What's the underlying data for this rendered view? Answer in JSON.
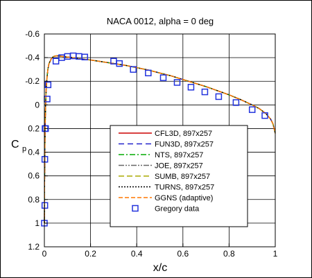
{
  "chart_data": {
    "type": "line",
    "title": "NACA 0012, alpha = 0 deg",
    "xlabel": "x/c",
    "ylabel": "C",
    "ylabel_sub": "p",
    "xlim": [
      0,
      1
    ],
    "ylim": [
      1.2,
      -0.6
    ],
    "y_inverted": true,
    "grid": true,
    "xticks": [
      0,
      0.2,
      0.4,
      0.6,
      0.8,
      1
    ],
    "xtick_labels": [
      "0",
      "0.2",
      "0.4",
      "0.6",
      "0.8",
      "1"
    ],
    "yticks": [
      -0.6,
      -0.4,
      -0.2,
      0,
      0.2,
      0.4,
      0.6,
      0.8,
      1,
      1.2
    ],
    "ytick_labels": [
      "-0.6",
      "-0.4",
      "-0.2",
      "0",
      "0.2",
      "0.4",
      "0.6",
      "0.8",
      "1",
      "1.2"
    ],
    "legend_position": "lower-right",
    "x": [
      0.0,
      0.0005,
      0.001,
      0.002,
      0.003,
      0.005,
      0.0075,
      0.01,
      0.015,
      0.02,
      0.03,
      0.04,
      0.05,
      0.06,
      0.08,
      0.1,
      0.12,
      0.15,
      0.2,
      0.25,
      0.3,
      0.35,
      0.4,
      0.45,
      0.5,
      0.55,
      0.6,
      0.65,
      0.7,
      0.75,
      0.8,
      0.85,
      0.9,
      0.93,
      0.96,
      0.98,
      0.99,
      1.0
    ],
    "series": [
      {
        "name": "CFL3D, 897x257",
        "color": "#cc0000",
        "dash": "",
        "values": [
          1.0,
          0.85,
          0.65,
          0.4,
          0.22,
          0.02,
          -0.12,
          -0.2,
          -0.3,
          -0.35,
          -0.39,
          -0.41,
          -0.415,
          -0.415,
          -0.41,
          -0.405,
          -0.4,
          -0.39,
          -0.38,
          -0.365,
          -0.35,
          -0.335,
          -0.315,
          -0.295,
          -0.27,
          -0.245,
          -0.215,
          -0.185,
          -0.155,
          -0.12,
          -0.085,
          -0.045,
          0.0,
          0.03,
          0.075,
          0.12,
          0.16,
          0.24
        ]
      },
      {
        "name": "FUN3D, 897x257",
        "color": "#2222cc",
        "dash": "8,5",
        "values": [
          1.0,
          0.85,
          0.65,
          0.4,
          0.22,
          0.02,
          -0.12,
          -0.2,
          -0.3,
          -0.35,
          -0.39,
          -0.41,
          -0.415,
          -0.415,
          -0.41,
          -0.405,
          -0.4,
          -0.39,
          -0.38,
          -0.365,
          -0.35,
          -0.335,
          -0.315,
          -0.295,
          -0.27,
          -0.245,
          -0.215,
          -0.185,
          -0.155,
          -0.12,
          -0.085,
          -0.045,
          0.0,
          0.03,
          0.075,
          0.12,
          0.16,
          0.24
        ]
      },
      {
        "name": "NTS, 897x257",
        "color": "#00aa00",
        "dash": "8,3,2,3",
        "values": [
          1.0,
          0.85,
          0.65,
          0.4,
          0.22,
          0.02,
          -0.12,
          -0.2,
          -0.3,
          -0.35,
          -0.39,
          -0.41,
          -0.415,
          -0.415,
          -0.41,
          -0.405,
          -0.4,
          -0.39,
          -0.38,
          -0.365,
          -0.35,
          -0.335,
          -0.315,
          -0.295,
          -0.27,
          -0.245,
          -0.215,
          -0.185,
          -0.155,
          -0.12,
          -0.085,
          -0.045,
          0.0,
          0.03,
          0.075,
          0.12,
          0.16,
          0.24
        ]
      },
      {
        "name": "JOE, 897x257",
        "color": "#666666",
        "dash": "8,2,2,2,2,2",
        "values": [
          1.0,
          0.85,
          0.65,
          0.4,
          0.22,
          0.02,
          -0.12,
          -0.2,
          -0.3,
          -0.35,
          -0.39,
          -0.41,
          -0.415,
          -0.415,
          -0.41,
          -0.405,
          -0.4,
          -0.39,
          -0.38,
          -0.365,
          -0.35,
          -0.335,
          -0.315,
          -0.295,
          -0.27,
          -0.245,
          -0.215,
          -0.185,
          -0.155,
          -0.12,
          -0.085,
          -0.045,
          0.0,
          0.03,
          0.075,
          0.12,
          0.16,
          0.24
        ]
      },
      {
        "name": "SUMB, 897x257",
        "color": "#aaaa00",
        "dash": "8,4",
        "values": [
          1.0,
          0.85,
          0.65,
          0.4,
          0.22,
          0.02,
          -0.12,
          -0.2,
          -0.3,
          -0.35,
          -0.39,
          -0.41,
          -0.415,
          -0.415,
          -0.41,
          -0.405,
          -0.4,
          -0.39,
          -0.38,
          -0.365,
          -0.35,
          -0.335,
          -0.315,
          -0.295,
          -0.27,
          -0.245,
          -0.215,
          -0.185,
          -0.155,
          -0.12,
          -0.085,
          -0.045,
          0.0,
          0.03,
          0.075,
          0.12,
          0.16,
          0.24
        ]
      },
      {
        "name": "TURNS, 897x257",
        "color": "#000000",
        "dash": "2,2",
        "values": [
          1.0,
          0.85,
          0.65,
          0.4,
          0.22,
          0.02,
          -0.12,
          -0.2,
          -0.3,
          -0.35,
          -0.39,
          -0.41,
          -0.415,
          -0.415,
          -0.41,
          -0.405,
          -0.4,
          -0.39,
          -0.38,
          -0.365,
          -0.35,
          -0.335,
          -0.315,
          -0.295,
          -0.27,
          -0.245,
          -0.215,
          -0.185,
          -0.155,
          -0.12,
          -0.085,
          -0.045,
          0.0,
          0.03,
          0.075,
          0.12,
          0.16,
          0.24
        ]
      },
      {
        "name": "GGNS (adaptive)",
        "color": "#ff7700",
        "dash": "6,3",
        "values": [
          1.0,
          0.85,
          0.65,
          0.4,
          0.22,
          0.02,
          -0.12,
          -0.2,
          -0.3,
          -0.35,
          -0.39,
          -0.41,
          -0.415,
          -0.415,
          -0.41,
          -0.405,
          -0.4,
          -0.39,
          -0.38,
          -0.365,
          -0.35,
          -0.335,
          -0.315,
          -0.295,
          -0.27,
          -0.245,
          -0.215,
          -0.185,
          -0.155,
          -0.12,
          -0.085,
          -0.045,
          0.0,
          0.03,
          0.075,
          0.12,
          0.16,
          0.24
        ]
      }
    ],
    "scatter": {
      "name": "Gregory data",
      "color": "#2233dd",
      "points": [
        {
          "x": 0.0,
          "y": 1.0
        },
        {
          "x": 0.002,
          "y": 0.85
        },
        {
          "x": 0.002,
          "y": 0.46
        },
        {
          "x": 0.003,
          "y": 0.2
        },
        {
          "x": 0.005,
          "y": 0.2
        },
        {
          "x": 0.012,
          "y": -0.05
        },
        {
          "x": 0.016,
          "y": -0.17
        },
        {
          "x": 0.05,
          "y": -0.37
        },
        {
          "x": 0.075,
          "y": -0.4
        },
        {
          "x": 0.1,
          "y": -0.41
        },
        {
          "x": 0.125,
          "y": -0.415
        },
        {
          "x": 0.15,
          "y": -0.41
        },
        {
          "x": 0.175,
          "y": -0.405
        },
        {
          "x": 0.3,
          "y": -0.37
        },
        {
          "x": 0.325,
          "y": -0.35
        },
        {
          "x": 0.385,
          "y": -0.3
        },
        {
          "x": 0.45,
          "y": -0.27
        },
        {
          "x": 0.515,
          "y": -0.23
        },
        {
          "x": 0.575,
          "y": -0.19
        },
        {
          "x": 0.635,
          "y": -0.15
        },
        {
          "x": 0.695,
          "y": -0.11
        },
        {
          "x": 0.755,
          "y": -0.07
        },
        {
          "x": 0.83,
          "y": -0.02
        },
        {
          "x": 0.9,
          "y": 0.04
        },
        {
          "x": 0.955,
          "y": 0.09
        }
      ]
    }
  }
}
